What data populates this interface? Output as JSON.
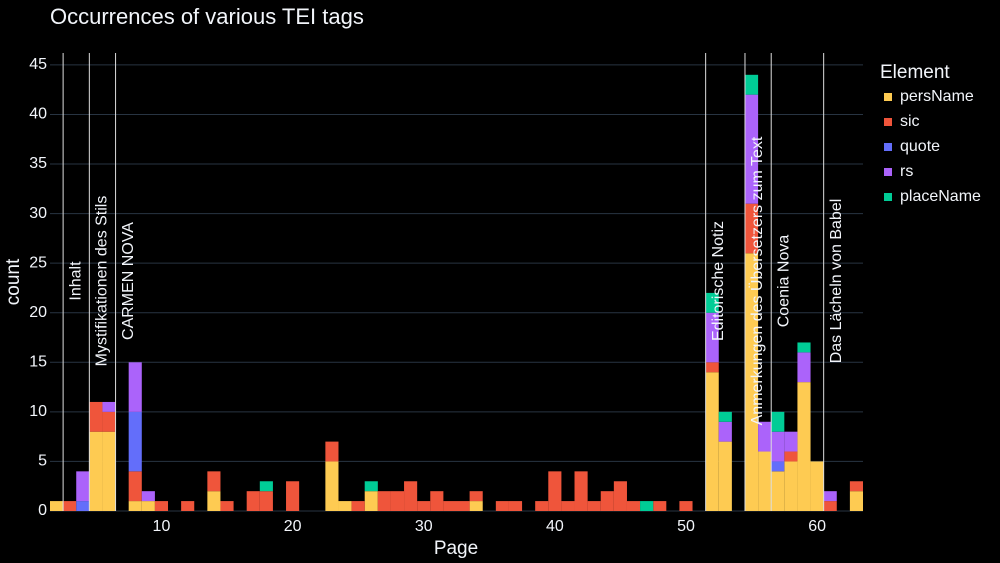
{
  "chart_data": {
    "type": "histogram",
    "title": "Occurrences of various TEI tags",
    "x_label": "Page",
    "y_label": "count",
    "legend_title": "Element",
    "stacked": true,
    "grid": true,
    "legend_position": "right",
    "bins": [
      1.5,
      2.5,
      3.5,
      4.5,
      5.5,
      6.5,
      7.5,
      8.5,
      9.5,
      10.5,
      11.5,
      12.5,
      13.5,
      14.5,
      15.5,
      16.5,
      17.5,
      18.5,
      19.5,
      20.5,
      21.5,
      22.5,
      23.5,
      24.5,
      25.5,
      26.5,
      27.5,
      28.5,
      29.5,
      30.5,
      31.5,
      32.5,
      33.5,
      34.5,
      35.5,
      36.5,
      37.5,
      38.5,
      39.5,
      40.5,
      41.5,
      42.5,
      43.5,
      44.5,
      45.5,
      46.5,
      47.5,
      48.5,
      49.5,
      50.5,
      51.5,
      52.5,
      53.5,
      54.5,
      55.5,
      56.5,
      57.5,
      58.5,
      59.5,
      60.5,
      61.5,
      62.5,
      63.5
    ],
    "xlim": [
      1.5,
      63.5
    ],
    "xticks": [
      10,
      20,
      30,
      40,
      50,
      60
    ],
    "ylim": [
      0,
      46.2
    ],
    "yticks": [
      0,
      5,
      10,
      15,
      20,
      25,
      30,
      35,
      40,
      45
    ],
    "series": [
      {
        "name": "persName",
        "color": "#fecb52",
        "values": [
          1,
          0,
          0,
          8,
          8,
          0,
          1,
          1,
          0,
          0,
          0,
          0,
          2,
          0,
          0,
          0,
          0,
          0,
          0,
          0,
          0,
          5,
          1,
          0,
          2,
          0,
          0,
          0,
          0,
          0,
          0,
          0,
          1,
          0,
          0,
          0,
          0,
          0,
          0,
          0,
          0,
          0,
          0,
          0,
          0,
          0,
          0,
          0,
          0,
          0,
          14,
          7,
          0,
          26,
          6,
          4,
          5,
          13,
          5,
          0,
          0,
          2
        ]
      },
      {
        "name": "sic",
        "color": "#ef553b",
        "values": [
          0,
          1,
          0,
          3,
          2,
          0,
          3,
          0,
          1,
          0,
          1,
          0,
          2,
          1,
          0,
          2,
          2,
          0,
          3,
          0,
          0,
          2,
          0,
          1,
          0,
          2,
          2,
          3,
          1,
          2,
          1,
          1,
          1,
          0,
          1,
          1,
          0,
          1,
          4,
          1,
          4,
          1,
          2,
          3,
          1,
          0,
          1,
          0,
          1,
          0,
          1,
          0,
          0,
          5,
          0,
          0,
          1,
          0,
          0,
          1,
          0,
          1
        ]
      },
      {
        "name": "quote",
        "color": "#636efa",
        "values": [
          0,
          0,
          1,
          0,
          0,
          0,
          6,
          0,
          0,
          0,
          0,
          0,
          0,
          0,
          0,
          0,
          0,
          0,
          0,
          0,
          0,
          0,
          0,
          0,
          0,
          0,
          0,
          0,
          0,
          0,
          0,
          0,
          0,
          0,
          0,
          0,
          0,
          0,
          0,
          0,
          0,
          0,
          0,
          0,
          0,
          0,
          0,
          0,
          0,
          0,
          0,
          0,
          0,
          0,
          0,
          1,
          0,
          0,
          0,
          0,
          0,
          0
        ]
      },
      {
        "name": "rs",
        "color": "#ab63fa",
        "values": [
          0,
          0,
          3,
          0,
          1,
          0,
          5,
          1,
          0,
          0,
          0,
          0,
          0,
          0,
          0,
          0,
          0,
          0,
          0,
          0,
          0,
          0,
          0,
          0,
          0,
          0,
          0,
          0,
          0,
          0,
          0,
          0,
          0,
          0,
          0,
          0,
          0,
          0,
          0,
          0,
          0,
          0,
          0,
          0,
          0,
          0,
          0,
          0,
          0,
          0,
          5,
          2,
          0,
          11,
          3,
          3,
          2,
          3,
          0,
          1,
          0,
          0
        ]
      },
      {
        "name": "placeName",
        "color": "#00cc96",
        "values": [
          0,
          0,
          0,
          0,
          0,
          0,
          0,
          0,
          0,
          0,
          0,
          0,
          0,
          0,
          0,
          0,
          1,
          0,
          0,
          0,
          0,
          0,
          0,
          0,
          1,
          0,
          0,
          0,
          0,
          0,
          0,
          0,
          0,
          0,
          0,
          0,
          0,
          0,
          0,
          0,
          0,
          0,
          0,
          0,
          0,
          1,
          0,
          0,
          0,
          0,
          2,
          1,
          0,
          2,
          0,
          2,
          0,
          1,
          0,
          0,
          0,
          0
        ]
      }
    ],
    "annotations": [
      {
        "x": 2.5,
        "text": "Inhalt"
      },
      {
        "x": 4.5,
        "text": "Mystifikationen des Stils"
      },
      {
        "x": 6.5,
        "text": "CARMEN NOVA"
      },
      {
        "x": 51.5,
        "text": "Editorische Notiz"
      },
      {
        "x": 54.5,
        "text": "Anmerkungen des Übersetzers zum Text"
      },
      {
        "x": 56.5,
        "text": "Coenia Nova"
      },
      {
        "x": 60.5,
        "text": "Das Lächeln von Babel"
      }
    ]
  }
}
